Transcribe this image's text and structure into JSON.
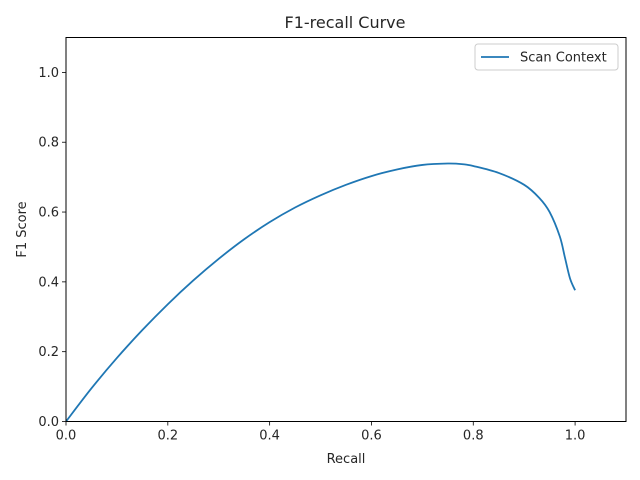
{
  "chart_data": {
    "type": "line",
    "title": "F1-recall Curve",
    "xlabel": "Recall",
    "ylabel": "F1 Score",
    "xlim": [
      0,
      1.1
    ],
    "ylim": [
      0,
      1.1
    ],
    "xticks": [
      "0.0",
      "0.2",
      "0.4",
      "0.6",
      "0.8",
      "1.0"
    ],
    "yticks": [
      "0.0",
      "0.2",
      "0.4",
      "0.6",
      "0.8",
      "1.0"
    ],
    "grid": false,
    "legend": {
      "position": "upper right"
    },
    "series": [
      {
        "name": "Scan Context",
        "color": "#1f77b4",
        "x": [
          0.0,
          0.05,
          0.1,
          0.15,
          0.2,
          0.25,
          0.3,
          0.35,
          0.4,
          0.45,
          0.5,
          0.55,
          0.6,
          0.65,
          0.7,
          0.75,
          0.78,
          0.8,
          0.85,
          0.9,
          0.93,
          0.95,
          0.97,
          0.98,
          0.99,
          1.0
        ],
        "y": [
          0.0,
          0.095,
          0.182,
          0.262,
          0.336,
          0.404,
          0.466,
          0.522,
          0.571,
          0.613,
          0.648,
          0.678,
          0.703,
          0.722,
          0.735,
          0.739,
          0.737,
          0.732,
          0.712,
          0.678,
          0.64,
          0.6,
          0.53,
          0.47,
          0.41,
          0.376
        ]
      }
    ]
  }
}
